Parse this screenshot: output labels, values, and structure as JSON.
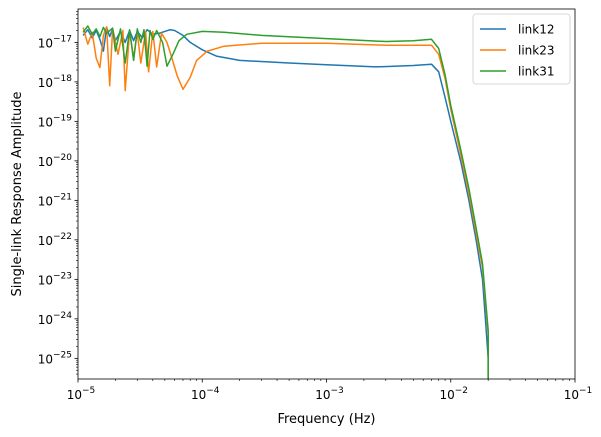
{
  "chart_data": {
    "type": "line",
    "title": "",
    "xlabel": "Frequency (Hz)",
    "ylabel": "Single-link Response Amplitude",
    "xscale": "log",
    "yscale": "log",
    "xlim": [
      1e-05,
      0.1
    ],
    "ylim": [
      3e-26,
      7e-17
    ],
    "x_ticks": [
      {
        "value": 1e-05,
        "base": "10",
        "exp": "−5"
      },
      {
        "value": 0.0001,
        "base": "10",
        "exp": "−4"
      },
      {
        "value": 0.001,
        "base": "10",
        "exp": "−3"
      },
      {
        "value": 0.01,
        "base": "10",
        "exp": "−2"
      },
      {
        "value": 0.1,
        "base": "10",
        "exp": "−1"
      }
    ],
    "y_ticks": [
      {
        "value": 1e-25,
        "base": "10",
        "exp": "−25"
      },
      {
        "value": 1e-24,
        "base": "10",
        "exp": "−24"
      },
      {
        "value": 1e-23,
        "base": "10",
        "exp": "−23"
      },
      {
        "value": 1e-22,
        "base": "10",
        "exp": "−22"
      },
      {
        "value": 1e-21,
        "base": "10",
        "exp": "−21"
      },
      {
        "value": 1e-20,
        "base": "10",
        "exp": "−20"
      },
      {
        "value": 1e-19,
        "base": "10",
        "exp": "−19"
      },
      {
        "value": 1e-18,
        "base": "10",
        "exp": "−18"
      },
      {
        "value": 1e-17,
        "base": "10",
        "exp": "−17"
      }
    ],
    "grid": false,
    "legend_position": "top-right",
    "series": [
      {
        "name": "link12",
        "color": "#1f77b4",
        "points": [
          [
            1.1e-05,
            1.5e-17
          ],
          [
            1.2e-05,
            2.1e-17
          ],
          [
            1.3e-05,
            1.3e-17
          ],
          [
            1.4e-05,
            2e-17
          ],
          [
            1.5e-05,
            1.2e-17
          ],
          [
            1.6e-05,
            6e-18
          ],
          [
            1.7e-05,
            2.4e-17
          ],
          [
            1.8e-05,
            1.4e-17
          ],
          [
            1.9e-05,
            2.2e-17
          ],
          [
            2e-05,
            1.1e-17
          ],
          [
            2.2e-05,
            1.9e-17
          ],
          [
            2.4e-05,
            1e-17
          ],
          [
            2.6e-05,
            2e-17
          ],
          [
            2.8e-05,
            1.1e-17
          ],
          [
            3e-05,
            1.9e-17
          ],
          [
            3.3e-05,
            1.3e-17
          ],
          [
            3.6e-05,
            2.1e-17
          ],
          [
            4e-05,
            1.6e-17
          ],
          [
            4.5e-05,
            1.7e-17
          ],
          [
            5e-05,
            1.9e-17
          ],
          [
            5.5e-05,
            2.1e-17
          ],
          [
            6e-05,
            2e-17
          ],
          [
            7e-05,
            1.5e-17
          ],
          [
            8e-05,
            1e-17
          ],
          [
            0.0001,
            6.5e-18
          ],
          [
            0.00013,
            4.5e-18
          ],
          [
            0.0002,
            3.5e-18
          ],
          [
            0.0005,
            3e-18
          ],
          [
            0.001,
            2.7e-18
          ],
          [
            0.0025,
            2.4e-18
          ],
          [
            0.005,
            2.6e-18
          ],
          [
            0.007,
            2.8e-18
          ],
          [
            0.008,
            1.8e-18
          ],
          [
            0.009,
            4e-19
          ],
          [
            0.01,
            1e-19
          ],
          [
            0.012,
            1e-20
          ],
          [
            0.014,
            1e-21
          ],
          [
            0.016,
            1e-22
          ],
          [
            0.018,
            1e-23
          ],
          [
            0.019,
            1e-24
          ],
          [
            0.02,
            1e-25
          ],
          [
            0.02,
            3e-26
          ]
        ]
      },
      {
        "name": "link23",
        "color": "#ff7f0e",
        "points": [
          [
            1.1e-05,
            2.4e-17
          ],
          [
            1.2e-05,
            9e-18
          ],
          [
            1.3e-05,
            1.8e-17
          ],
          [
            1.4e-05,
            4e-18
          ],
          [
            1.5e-05,
            2.3e-18
          ],
          [
            1.6e-05,
            1.5e-17
          ],
          [
            1.7e-05,
            2.5e-17
          ],
          [
            1.8e-05,
            8e-19
          ],
          [
            1.9e-05,
            2.2e-17
          ],
          [
            2.1e-05,
            5e-18
          ],
          [
            2.3e-05,
            2e-17
          ],
          [
            2.4e-05,
            6e-19
          ],
          [
            2.6e-05,
            1.9e-17
          ],
          [
            2.8e-05,
            4e-18
          ],
          [
            3e-05,
            1.8e-17
          ],
          [
            3.2e-05,
            3e-18
          ],
          [
            3.5e-05,
            1.9e-17
          ],
          [
            3.7e-05,
            1.8e-18
          ],
          [
            4e-05,
            1.9e-17
          ],
          [
            4.3e-05,
            2.4e-18
          ],
          [
            4.7e-05,
            1.7e-17
          ],
          [
            5.2e-05,
            1e-17
          ],
          [
            5.7e-05,
            4e-18
          ],
          [
            6.3e-05,
            1.4e-18
          ],
          [
            7e-05,
            6.5e-19
          ],
          [
            8e-05,
            1.3e-18
          ],
          [
            9e-05,
            3.5e-18
          ],
          [
            0.00011,
            6e-18
          ],
          [
            0.00015,
            8e-18
          ],
          [
            0.0003,
            9.5e-18
          ],
          [
            0.001,
            9.5e-18
          ],
          [
            0.003,
            8.5e-18
          ],
          [
            0.005,
            8.5e-18
          ],
          [
            0.007,
            8.5e-18
          ],
          [
            0.008,
            5e-18
          ],
          [
            0.009,
            1.2e-18
          ],
          [
            0.01,
            2e-19
          ],
          [
            0.012,
            1.5e-20
          ],
          [
            0.014,
            1.5e-21
          ],
          [
            0.016,
            1.5e-22
          ],
          [
            0.018,
            2e-23
          ],
          [
            0.02,
            4e-25
          ],
          [
            0.02,
            3e-26
          ]
        ]
      },
      {
        "name": "link31",
        "color": "#2ca02c",
        "points": [
          [
            1.1e-05,
            1.8e-17
          ],
          [
            1.2e-05,
            2.6e-17
          ],
          [
            1.3e-05,
            1.6e-17
          ],
          [
            1.4e-05,
            2.2e-17
          ],
          [
            1.5e-05,
            1.4e-17
          ],
          [
            1.6e-05,
            2.4e-17
          ],
          [
            1.7e-05,
            1.7e-17
          ],
          [
            1.9e-05,
            2.3e-17
          ],
          [
            2e-05,
            6e-18
          ],
          [
            2.2e-05,
            2.2e-17
          ],
          [
            2.4e-05,
            3e-18
          ],
          [
            2.6e-05,
            2.1e-17
          ],
          [
            2.8e-05,
            3.5e-18
          ],
          [
            3e-05,
            2.2e-17
          ],
          [
            3.2e-05,
            1e-17
          ],
          [
            3.4e-05,
            2.1e-17
          ],
          [
            3.6e-05,
            2.5e-18
          ],
          [
            3.8e-05,
            2e-17
          ],
          [
            4e-05,
            1.2e-17
          ],
          [
            4.3e-05,
            2e-17
          ],
          [
            4.8e-05,
            1e-17
          ],
          [
            5.2e-05,
            2.5e-18
          ],
          [
            5.8e-05,
            5e-18
          ],
          [
            6.5e-05,
            1.1e-17
          ],
          [
            7.5e-05,
            1.6e-17
          ],
          [
            0.0001,
            1.9e-17
          ],
          [
            0.00015,
            1.8e-17
          ],
          [
            0.0003,
            1.5e-17
          ],
          [
            0.001,
            1.25e-17
          ],
          [
            0.003,
            1.05e-17
          ],
          [
            0.005,
            1.1e-17
          ],
          [
            0.007,
            1.2e-17
          ],
          [
            0.008,
            7e-18
          ],
          [
            0.009,
            1.5e-18
          ],
          [
            0.01,
            2.5e-19
          ],
          [
            0.012,
            2e-20
          ],
          [
            0.014,
            2e-21
          ],
          [
            0.016,
            2e-22
          ],
          [
            0.018,
            2.5e-23
          ],
          [
            0.02,
            5e-25
          ],
          [
            0.02,
            3e-26
          ]
        ]
      }
    ]
  }
}
